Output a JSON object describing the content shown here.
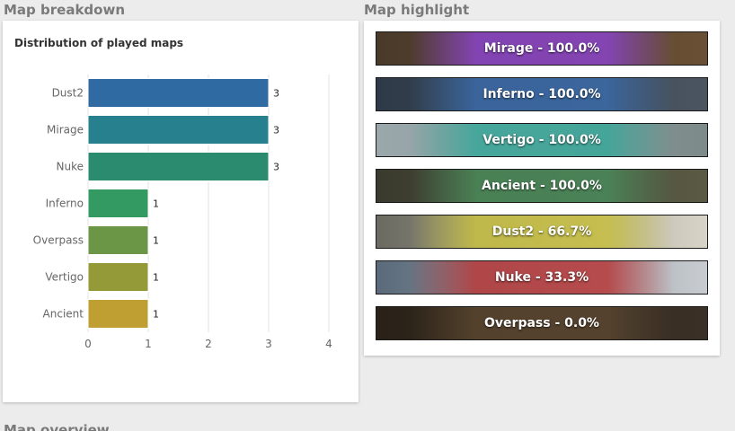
{
  "sections": {
    "breakdown_title": "Map breakdown",
    "highlight_title": "Map highlight",
    "next_title": "Map overview"
  },
  "chart_data": {
    "type": "bar",
    "orientation": "horizontal",
    "title": "Distribution of played maps",
    "categories": [
      "Dust2",
      "Mirage",
      "Nuke",
      "Inferno",
      "Overpass",
      "Vertigo",
      "Ancient"
    ],
    "values": [
      3,
      3,
      3,
      1,
      1,
      1,
      1
    ],
    "colors": [
      "#2f6aa3",
      "#26808e",
      "#2b8b6f",
      "#339a62",
      "#6a9645",
      "#959a38",
      "#bf9f31"
    ],
    "xticks": [
      0,
      1,
      2,
      3,
      4
    ],
    "xlim": [
      0,
      4
    ],
    "grid": true
  },
  "highlights": [
    {
      "map": "Mirage",
      "label": "Mirage - 100.0%",
      "win_rate": 100.0,
      "tint": "#8a44c9",
      "bg_left": "#4a3a2a",
      "bg_right": "#6a5034"
    },
    {
      "map": "Inferno",
      "label": "Inferno - 100.0%",
      "win_rate": 100.0,
      "tint": "#3a6aa8",
      "bg_left": "#2e3a48",
      "bg_right": "#4a5560"
    },
    {
      "map": "Vertigo",
      "label": "Vertigo - 100.0%",
      "win_rate": 100.0,
      "tint": "#3aa89a",
      "bg_left": "#9aa8ac",
      "bg_right": "#7d8a8a"
    },
    {
      "map": "Ancient",
      "label": "Ancient - 100.0%",
      "win_rate": 100.0,
      "tint": "#4a8a5a",
      "bg_left": "#3a3a2e",
      "bg_right": "#5a5a44"
    },
    {
      "map": "Dust2",
      "label": "Dust2 - 66.7%",
      "win_rate": 66.7,
      "tint": "#c8c040",
      "bg_left": "#6a6a60",
      "bg_right": "#d8d4c8"
    },
    {
      "map": "Nuke",
      "label": "Nuke - 33.3%",
      "win_rate": 33.3,
      "tint": "#b83a3a",
      "bg_left": "#5a6a7a",
      "bg_right": "#c8ccd0"
    },
    {
      "map": "Overpass",
      "label": "Overpass - 0.0%",
      "win_rate": 0.0,
      "tint": "#5a4630",
      "bg_left": "#2a2218",
      "bg_right": "#3a3026"
    }
  ]
}
